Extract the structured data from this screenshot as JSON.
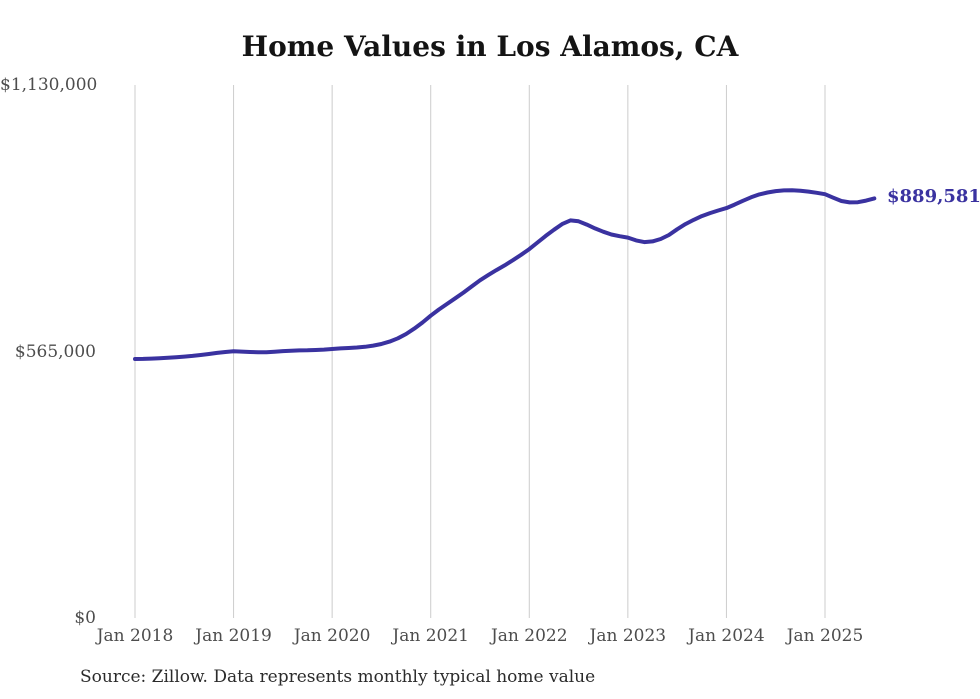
{
  "title": "Home Values in Los Alamos, CA",
  "end_label": "$889,581",
  "source_note": "Source: Zillow. Data represents monthly typical home value",
  "colors": {
    "line": "#3a32a0",
    "grid": "#cccccc",
    "axis_text": "#4d4d4d",
    "title_text": "#141414",
    "end_label_text": "#3a32a0",
    "source_text": "#2b2b2b",
    "background": "#ffffff"
  },
  "chart_data": {
    "type": "line",
    "title": "Home Values in Los Alamos, CA",
    "xlabel": "",
    "ylabel": "",
    "ylim": [
      0,
      1130000
    ],
    "grid": "vertical-only",
    "legend": "none",
    "y_ticks": [
      {
        "label": "$0",
        "value": 0
      },
      {
        "label": "$565,000",
        "value": 565000
      },
      {
        "label": "$1,130,000",
        "value": 1130000
      }
    ],
    "x_ticks": [
      {
        "label": "Jan 2018",
        "month_index": 0
      },
      {
        "label": "Jan 2019",
        "month_index": 12
      },
      {
        "label": "Jan 2020",
        "month_index": 24
      },
      {
        "label": "Jan 2021",
        "month_index": 36
      },
      {
        "label": "Jan 2022",
        "month_index": 48
      },
      {
        "label": "Jan 2023",
        "month_index": 60
      },
      {
        "label": "Jan 2024",
        "month_index": 72
      },
      {
        "label": "Jan 2025",
        "month_index": 84
      }
    ],
    "last_value": 889581,
    "last_point_label": "$889,581",
    "x": [
      "Jan 2018",
      "Feb 2018",
      "Mar 2018",
      "Apr 2018",
      "May 2018",
      "Jun 2018",
      "Jul 2018",
      "Aug 2018",
      "Sep 2018",
      "Oct 2018",
      "Nov 2018",
      "Dec 2018",
      "Jan 2019",
      "Feb 2019",
      "Mar 2019",
      "Apr 2019",
      "May 2019",
      "Jun 2019",
      "Jul 2019",
      "Aug 2019",
      "Sep 2019",
      "Oct 2019",
      "Nov 2019",
      "Dec 2019",
      "Jan 2020",
      "Feb 2020",
      "Mar 2020",
      "Apr 2020",
      "May 2020",
      "Jun 2020",
      "Jul 2020",
      "Aug 2020",
      "Sep 2020",
      "Oct 2020",
      "Nov 2020",
      "Dec 2020",
      "Jan 2021",
      "Feb 2021",
      "Mar 2021",
      "Apr 2021",
      "May 2021",
      "Jun 2021",
      "Jul 2021",
      "Aug 2021",
      "Sep 2021",
      "Oct 2021",
      "Nov 2021",
      "Dec 2021",
      "Jan 2022",
      "Feb 2022",
      "Mar 2022",
      "Apr 2022",
      "May 2022",
      "Jun 2022",
      "Jul 2022",
      "Aug 2022",
      "Sep 2022",
      "Oct 2022",
      "Nov 2022",
      "Dec 2022",
      "Jan 2023",
      "Feb 2023",
      "Mar 2023",
      "Apr 2023",
      "May 2023",
      "Jun 2023",
      "Jul 2023",
      "Aug 2023",
      "Sep 2023",
      "Oct 2023",
      "Nov 2023",
      "Dec 2023",
      "Jan 2024",
      "Feb 2024",
      "Mar 2024",
      "Apr 2024",
      "May 2024",
      "Jun 2024",
      "Jul 2024",
      "Aug 2024",
      "Sep 2024",
      "Oct 2024",
      "Nov 2024",
      "Dec 2024",
      "Jan 2025",
      "Feb 2025",
      "Mar 2025",
      "Apr 2025",
      "May 2025",
      "Jun 2025",
      "Jul 2025"
    ],
    "values": [
      549000,
      549300,
      550000,
      550800,
      551800,
      552900,
      554100,
      555600,
      557500,
      559800,
      562000,
      564000,
      565500,
      564800,
      563900,
      563300,
      563600,
      564500,
      565800,
      566800,
      567300,
      567600,
      568100,
      569100,
      570300,
      571500,
      572500,
      573500,
      575000,
      577500,
      581000,
      586000,
      593000,
      602000,
      613500,
      626500,
      641000,
      654000,
      666000,
      678000,
      690000,
      703000,
      716000,
      727000,
      737500,
      747500,
      758500,
      770000,
      782000,
      796000,
      810000,
      823000,
      835000,
      843000,
      841000,
      834000,
      826000,
      819000,
      813000,
      809500,
      806500,
      800500,
      797000,
      798500,
      803500,
      812000,
      824000,
      835000,
      844000,
      852000,
      858500,
      864000,
      869000,
      876500,
      884500,
      892000,
      898000,
      902000,
      905000,
      906500,
      907000,
      906000,
      904000,
      901500,
      898500,
      891000,
      884000,
      881000,
      881500,
      885000,
      889581
    ]
  }
}
